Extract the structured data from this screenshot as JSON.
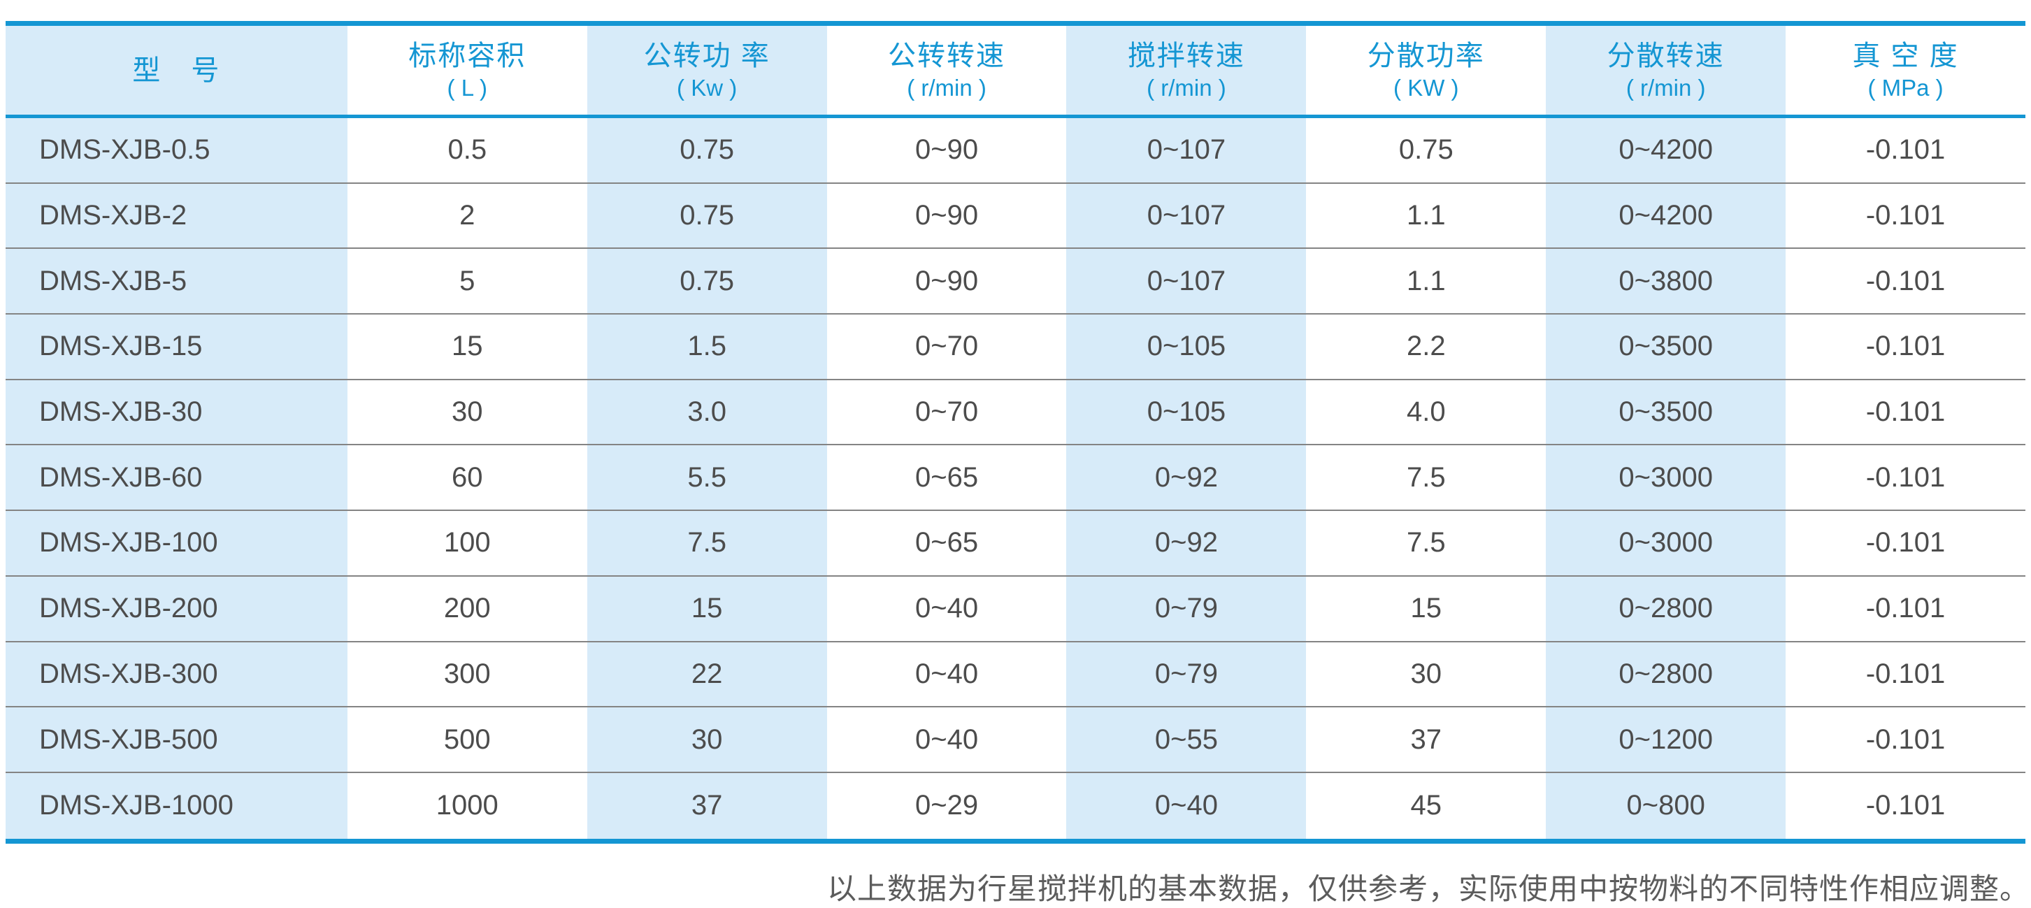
{
  "colors": {
    "accent": "#1496d3",
    "stripe": "#d7ebf9",
    "data_text": "#4c4c4c",
    "separator": "#848484",
    "footnote_text": "#5c5c5c"
  },
  "table": {
    "columns": [
      {
        "label": "型　号",
        "unit": ""
      },
      {
        "label": "标称容积",
        "unit": "( L )"
      },
      {
        "label": "公转功 率",
        "unit": "( Kw )"
      },
      {
        "label": "公转转速",
        "unit": "( r/min )"
      },
      {
        "label": "搅拌转速",
        "unit": "( r/min )"
      },
      {
        "label": "分散功率",
        "unit": "( KW )"
      },
      {
        "label": "分散转速",
        "unit": "( r/min )"
      },
      {
        "label": "真 空 度",
        "unit": "( MPa )"
      }
    ],
    "rows": [
      [
        "DMS-XJB-0.5",
        "0.5",
        "0.75",
        "0~90",
        "0~107",
        "0.75",
        "0~4200",
        "-0.101"
      ],
      [
        "DMS-XJB-2",
        "2",
        "0.75",
        "0~90",
        "0~107",
        "1.1",
        "0~4200",
        "-0.101"
      ],
      [
        "DMS-XJB-5",
        "5",
        "0.75",
        "0~90",
        "0~107",
        "1.1",
        "0~3800",
        "-0.101"
      ],
      [
        "DMS-XJB-15",
        "15",
        "1.5",
        "0~70",
        "0~105",
        "2.2",
        "0~3500",
        "-0.101"
      ],
      [
        "DMS-XJB-30",
        "30",
        "3.0",
        "0~70",
        "0~105",
        "4.0",
        "0~3500",
        "-0.101"
      ],
      [
        "DMS-XJB-60",
        "60",
        "5.5",
        "0~65",
        "0~92",
        "7.5",
        "0~3000",
        "-0.101"
      ],
      [
        "DMS-XJB-100",
        "100",
        "7.5",
        "0~65",
        "0~92",
        "7.5",
        "0~3000",
        "-0.101"
      ],
      [
        "DMS-XJB-200",
        "200",
        "15",
        "0~40",
        "0~79",
        "15",
        "0~2800",
        "-0.101"
      ],
      [
        "DMS-XJB-300",
        "300",
        "22",
        "0~40",
        "0~79",
        "30",
        "0~2800",
        "-0.101"
      ],
      [
        "DMS-XJB-500",
        "500",
        "30",
        "0~40",
        "0~55",
        "37",
        "0~1200",
        "-0.101"
      ],
      [
        "DMS-XJB-1000",
        "1000",
        "37",
        "0~29",
        "0~40",
        "45",
        "0~800",
        "-0.101"
      ]
    ]
  },
  "footnote": "以上数据为行星搅拌机的基本数据，仅供参考，实际使用中按物料的不同特性作相应调整。"
}
